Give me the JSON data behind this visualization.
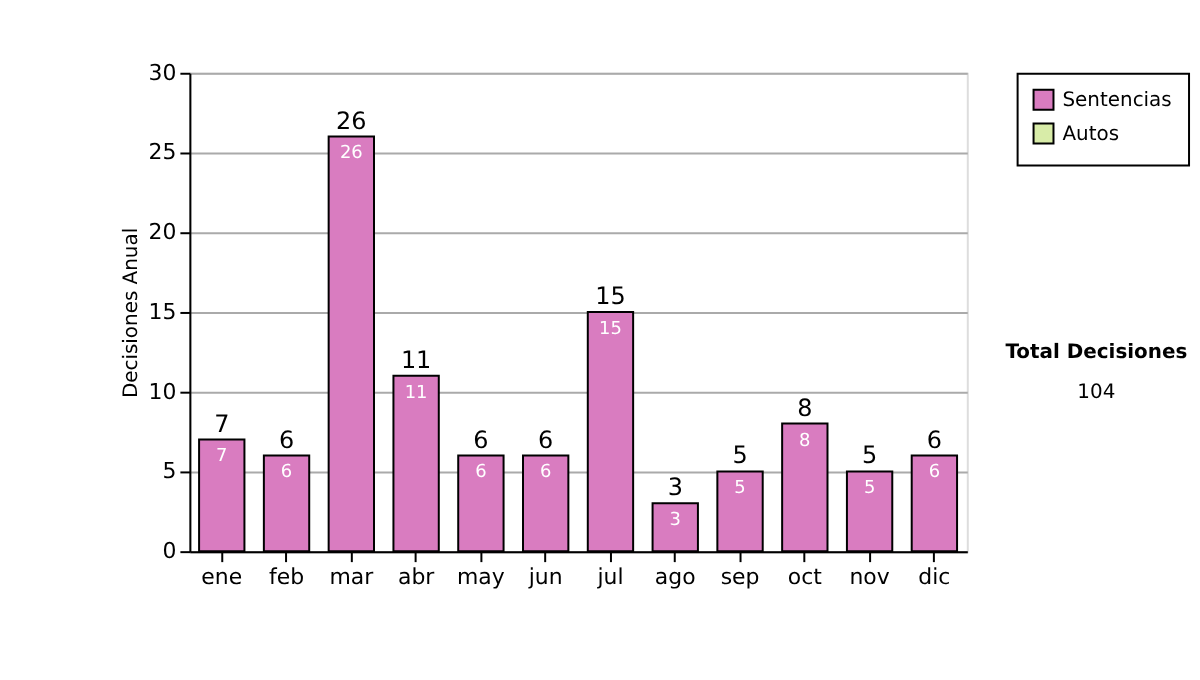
{
  "chart_data": {
    "type": "bar",
    "ylabel": "Decisiones Anual",
    "categories": [
      "ene",
      "feb",
      "mar",
      "abr",
      "may",
      "jun",
      "jul",
      "ago",
      "sep",
      "oct",
      "nov",
      "dic"
    ],
    "series": [
      {
        "name": "Sentencias",
        "color": "#d97cc0",
        "values": [
          7,
          6,
          26,
          11,
          6,
          6,
          15,
          3,
          5,
          8,
          5,
          6
        ],
        "value_labels": [
          "7",
          "6",
          "26",
          "11",
          "6",
          "6",
          "15",
          "3",
          "5",
          "8",
          "5",
          "6"
        ]
      },
      {
        "name": "Autos",
        "color": "#d8eca8",
        "values": [
          0,
          0,
          0,
          0,
          0,
          0,
          0,
          0,
          0,
          0,
          0,
          0
        ]
      }
    ],
    "stacked": true,
    "totals": [
      "7",
      "6",
      "26",
      "11",
      "6",
      "6",
      "15",
      "3",
      "5",
      "8",
      "5",
      "6"
    ],
    "ylim": [
      0,
      30
    ],
    "yticks": [
      0,
      5,
      10,
      15,
      20,
      25,
      30
    ],
    "grid": "y",
    "legend": "right",
    "annotations": [
      "Total Decisiones",
      "104"
    ]
  }
}
